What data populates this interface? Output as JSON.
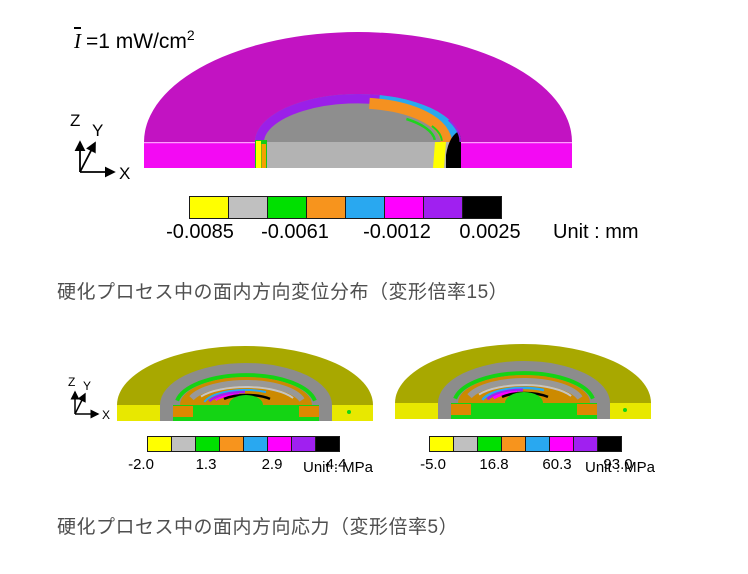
{
  "figure1": {
    "intensity": {
      "symbol": "I",
      "equation": "=1 mW/cm",
      "exponent": "2"
    },
    "axis": {
      "x": "X",
      "y": "Y",
      "z": "Z"
    },
    "legend": {
      "values": [
        "-0.0085",
        "-0.0061",
        "-0.0012",
        "0.0025"
      ],
      "unit": "Unit : mm"
    },
    "caption": "硬化プロセス中の面内方向変位分布（変形倍率15）"
  },
  "figure2": {
    "axis": {
      "x": "X",
      "y": "Y",
      "z": "Z"
    },
    "legend_left": {
      "values": [
        "-2.0",
        "1.3",
        "2.9",
        "4.4"
      ],
      "unit": "Unit : MPa"
    },
    "legend_right": {
      "values": [
        "-5.0",
        "16.8",
        "60.3",
        "93.0"
      ],
      "unit": "Unit : MPa"
    },
    "caption": "硬化プロセス中の面内方向応力（変形倍率5）"
  },
  "colors": {
    "legend_swatches": [
      "#FFFF00",
      "#C0C0C0",
      "#00E000",
      "#F7941D",
      "#29A8F0",
      "#FF00FF",
      "#A020F0",
      "#000000"
    ],
    "displacement_dome": "#C213C2",
    "displacement_base": "#F30AF3",
    "inner_dome_gray": "#8E8E8E",
    "inner_base_gray": "#B3B3B3",
    "stress_dome": "#A8A800",
    "stress_base": "#E8E800",
    "caption_text": "#4F4F4F"
  }
}
